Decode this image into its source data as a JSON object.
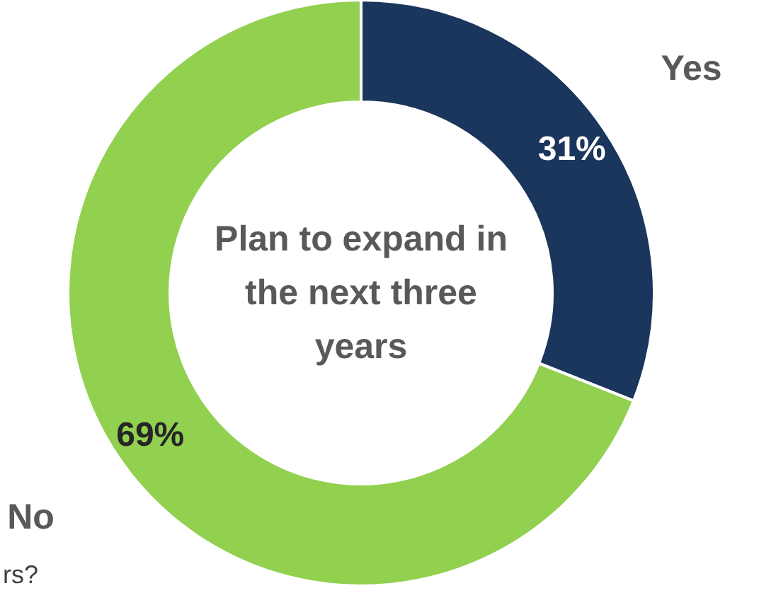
{
  "chart_data": {
    "type": "donut",
    "title": "Plan to expand in the next three years",
    "categories": [
      "Yes",
      "No"
    ],
    "values": [
      31,
      69
    ],
    "colors": [
      "#1b365d",
      "#92d050"
    ],
    "value_labels": [
      "31%",
      "69%"
    ],
    "annotations": [
      "rs?"
    ]
  }
}
